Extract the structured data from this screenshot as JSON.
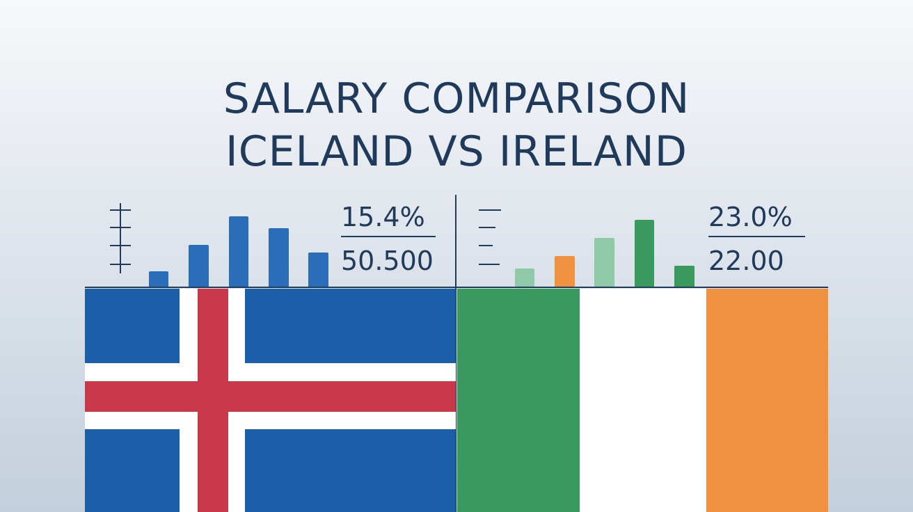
{
  "header": {
    "title_lines": [
      "SALARY COMPARISON",
      "ICELAND VS IRELAND"
    ]
  },
  "panels": [
    {
      "stats": [
        "15.4%",
        "50.500"
      ]
    },
    {
      "stats": [
        "23.0%",
        "22.00"
      ]
    }
  ]
}
